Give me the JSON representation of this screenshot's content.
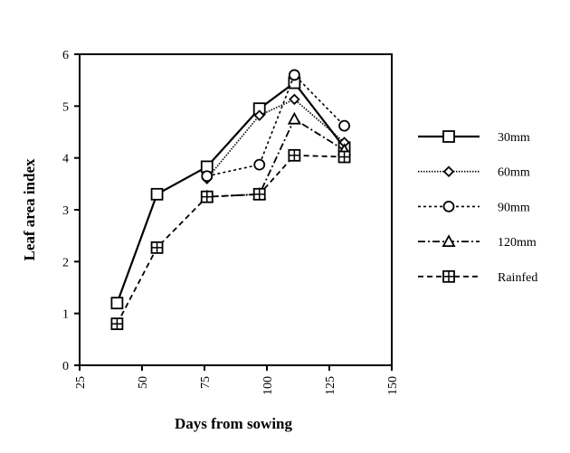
{
  "chart_data": {
    "type": "line",
    "title": "",
    "xlabel": "Days from sowing",
    "ylabel": "Leaf area index",
    "xlim": [
      25,
      150
    ],
    "ylim": [
      0,
      6
    ],
    "xticks": [
      "25",
      "50",
      "75",
      "100",
      "125",
      "150"
    ],
    "yticks": [
      "0",
      "1",
      "2",
      "3",
      "4",
      "5",
      "6"
    ],
    "grid": false,
    "legend_position": "right",
    "series": [
      {
        "name": "30mm",
        "marker": "square",
        "dash": "solid",
        "x": [
          40,
          56,
          76,
          97,
          111,
          131
        ],
        "y": [
          1.2,
          3.3,
          3.83,
          4.95,
          5.45,
          4.2
        ]
      },
      {
        "name": "60mm",
        "marker": "diamond",
        "dash": "dotted",
        "x": [
          76,
          97,
          111,
          131
        ],
        "y": [
          3.6,
          4.82,
          5.13,
          4.3
        ]
      },
      {
        "name": "90mm",
        "marker": "circle",
        "dash": "short-dash",
        "x": [
          76,
          97,
          111,
          131
        ],
        "y": [
          3.65,
          3.87,
          5.6,
          4.62
        ]
      },
      {
        "name": "120mm",
        "marker": "triangle",
        "dash": "dash-dot",
        "x": [
          76,
          97,
          111,
          131
        ],
        "y": [
          3.25,
          3.3,
          4.75,
          4.15
        ]
      },
      {
        "name": "Rainfed",
        "marker": "crossed-square",
        "dash": "dashed",
        "x": [
          40,
          56,
          76,
          97,
          111,
          131
        ],
        "y": [
          0.8,
          2.27,
          3.25,
          3.3,
          4.05,
          4.02
        ]
      }
    ]
  }
}
